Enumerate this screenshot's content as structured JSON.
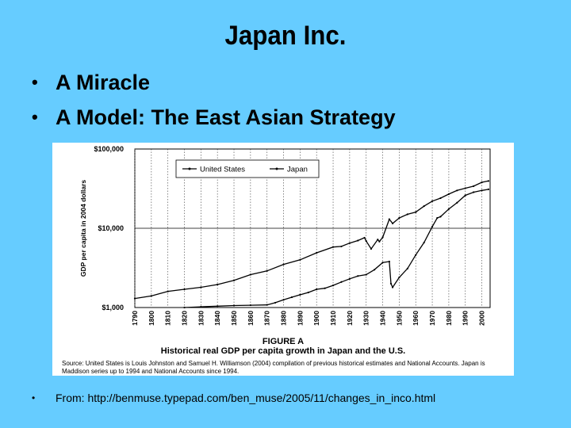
{
  "slide": {
    "title": "Japan Inc.",
    "bullets": [
      "A Miracle",
      "A Model: The East Asian Strategy"
    ],
    "source": "From: http://benmuse.typepad.com/ben_muse/2005/11/changes_in_inco.html"
  },
  "figure": {
    "label": "FIGURE A",
    "title": "Historical real GDP per capita growth in Japan and the U.S.",
    "source_text": "Source: United States is Louis Johnston and Samuel H. Williamson (2004) compilation of previous historical estimates and National Accounts. Japan is Maddison series up to 1994 and National Accounts since 1994."
  },
  "chart_data": {
    "type": "line",
    "ylabel": "GDP per capita in 2004 dollars",
    "xlabel": "",
    "yscale": "log",
    "ylim": [
      1000,
      100000
    ],
    "xlim": [
      1790,
      2005
    ],
    "ytick_labels": [
      "$100,000",
      "$10,000",
      "$1,000"
    ],
    "ytick_values": [
      100000,
      10000,
      1000
    ],
    "xtick_labels": [
      "1790",
      "1800",
      "1810",
      "1820",
      "1830",
      "1840",
      "1850",
      "1860",
      "1870",
      "1880",
      "1890",
      "1900",
      "1910",
      "1920",
      "1930",
      "1940",
      "1950",
      "1960",
      "1970",
      "1980",
      "1990",
      "2000"
    ],
    "grid": "vertical-dotted, horizontal at 10000",
    "legend_position": "top-left",
    "series": [
      {
        "name": "United States",
        "color": "#000000",
        "x": [
          1790,
          1800,
          1810,
          1820,
          1830,
          1840,
          1850,
          1860,
          1870,
          1880,
          1890,
          1900,
          1910,
          1915,
          1920,
          1925,
          1929,
          1930,
          1933,
          1937,
          1938,
          1940,
          1944,
          1946,
          1950,
          1955,
          1960,
          1965,
          1970,
          1975,
          1980,
          1985,
          1990,
          1995,
          2000,
          2004
        ],
        "y": [
          1300,
          1400,
          1600,
          1700,
          1800,
          1950,
          2200,
          2600,
          2900,
          3500,
          4000,
          4900,
          5800,
          5900,
          6500,
          7000,
          7600,
          6900,
          5500,
          7200,
          6800,
          7700,
          13000,
          11500,
          13500,
          15000,
          16000,
          19000,
          22000,
          24000,
          27000,
          30000,
          32000,
          34000,
          38000,
          39500
        ]
      },
      {
        "name": "Japan",
        "color": "#000000",
        "x": [
          1820,
          1830,
          1840,
          1850,
          1860,
          1870,
          1875,
          1880,
          1885,
          1890,
          1895,
          1900,
          1905,
          1910,
          1915,
          1920,
          1925,
          1930,
          1935,
          1940,
          1944,
          1945,
          1946,
          1950,
          1955,
          1960,
          1965,
          1970,
          1973,
          1975,
          1980,
          1985,
          1990,
          1995,
          2000,
          2004
        ],
        "y": [
          1000,
          1020,
          1040,
          1060,
          1070,
          1080,
          1150,
          1250,
          1350,
          1450,
          1550,
          1700,
          1750,
          1900,
          2100,
          2300,
          2500,
          2600,
          3000,
          3700,
          3800,
          2000,
          1800,
          2400,
          3100,
          4600,
          6600,
          10500,
          13500,
          14000,
          17500,
          21000,
          26000,
          28500,
          30000,
          31000
        ]
      }
    ]
  }
}
